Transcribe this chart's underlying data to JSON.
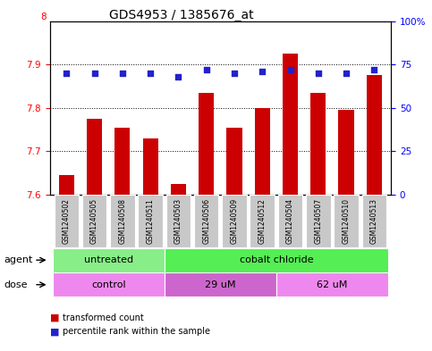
{
  "title": "GDS4953 / 1385676_at",
  "samples": [
    "GSM1240502",
    "GSM1240505",
    "GSM1240508",
    "GSM1240511",
    "GSM1240503",
    "GSM1240506",
    "GSM1240509",
    "GSM1240512",
    "GSM1240504",
    "GSM1240507",
    "GSM1240510",
    "GSM1240513"
  ],
  "transformed_counts": [
    7.645,
    7.775,
    7.755,
    7.73,
    7.625,
    7.835,
    7.755,
    7.8,
    7.925,
    7.835,
    7.795,
    7.875
  ],
  "percentile_ranks": [
    70,
    70,
    70,
    70,
    68,
    72,
    70,
    71,
    72,
    70,
    70,
    72
  ],
  "ylim_left": [
    7.6,
    8.0
  ],
  "ylim_right": [
    0,
    100
  ],
  "yticks_left": [
    7.6,
    7.7,
    7.8,
    7.9
  ],
  "ytick_labels_left": [
    "7.6",
    "7.7",
    "7.8",
    "7.9"
  ],
  "ytick_top_left": 8.0,
  "yticks_right": [
    0,
    25,
    50,
    75,
    100
  ],
  "ytick_labels_right": [
    "0",
    "25",
    "50",
    "75",
    "100%"
  ],
  "bar_color": "#cc0000",
  "dot_color": "#2222cc",
  "bar_width": 0.55,
  "agent_groups": [
    {
      "label": "untreated",
      "start": 0,
      "end": 4,
      "color": "#88ee88"
    },
    {
      "label": "cobalt chloride",
      "start": 4,
      "end": 12,
      "color": "#55ee55"
    }
  ],
  "dose_groups": [
    {
      "label": "control",
      "start": 0,
      "end": 4,
      "color": "#ee88ee"
    },
    {
      "label": "29 uM",
      "start": 4,
      "end": 8,
      "color": "#cc66cc"
    },
    {
      "label": "62 uM",
      "start": 8,
      "end": 12,
      "color": "#ee88ee"
    }
  ],
  "legend_red_label": "transformed count",
  "legend_blue_label": "percentile rank within the sample",
  "xlabel_agent": "agent",
  "xlabel_dose": "dose",
  "title_fontsize": 10,
  "tick_fontsize": 7.5,
  "sample_fontsize": 5.5,
  "row_fontsize": 8,
  "legend_fontsize": 7
}
